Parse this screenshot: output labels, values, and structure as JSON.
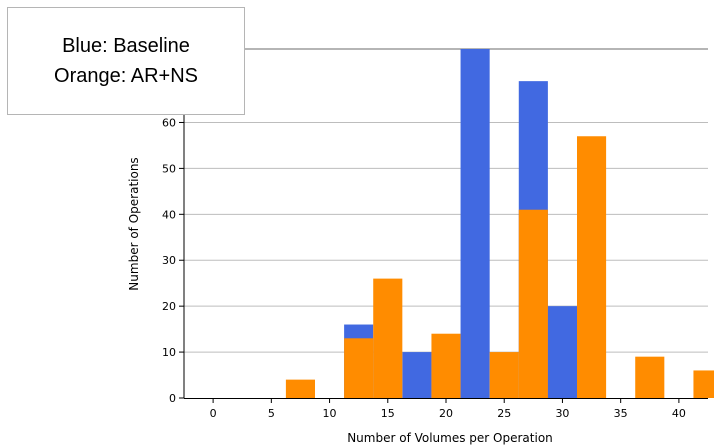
{
  "chart_data": {
    "type": "bar",
    "xlabel": "Number of Volumes per Operation",
    "ylabel": "Number of Operations",
    "x_ticks": [
      0,
      5,
      10,
      15,
      20,
      25,
      30,
      35,
      40
    ],
    "y_ticks": [
      0,
      10,
      20,
      30,
      40,
      50,
      60
    ],
    "xlim": [
      -2.5,
      42.5
    ],
    "ylim": [
      0,
      76
    ],
    "grid": "horizontal",
    "legend_placement": "top-left",
    "series": [
      {
        "name": "Baseline",
        "color": "#4169e1",
        "bars": [
          {
            "x": 12.5,
            "value": 16
          },
          {
            "x": 17.5,
            "value": 10
          },
          {
            "x": 22.5,
            "value": 76
          },
          {
            "x": 27.5,
            "value": 69
          },
          {
            "x": 30.0,
            "value": 20
          }
        ]
      },
      {
        "name": "AR+NS",
        "color": "#ff8c00",
        "bars": [
          {
            "x": 7.5,
            "value": 4
          },
          {
            "x": 12.5,
            "value": 13
          },
          {
            "x": 15.0,
            "value": 26
          },
          {
            "x": 20.0,
            "value": 14
          },
          {
            "x": 25.0,
            "value": 10
          },
          {
            "x": 27.5,
            "value": 41
          },
          {
            "x": 32.5,
            "value": 57
          },
          {
            "x": 37.5,
            "value": 9
          },
          {
            "x": 42.5,
            "value": 6
          }
        ]
      }
    ]
  },
  "legend": {
    "line1": "Blue: Baseline",
    "line2": "Orange: AR+NS"
  }
}
